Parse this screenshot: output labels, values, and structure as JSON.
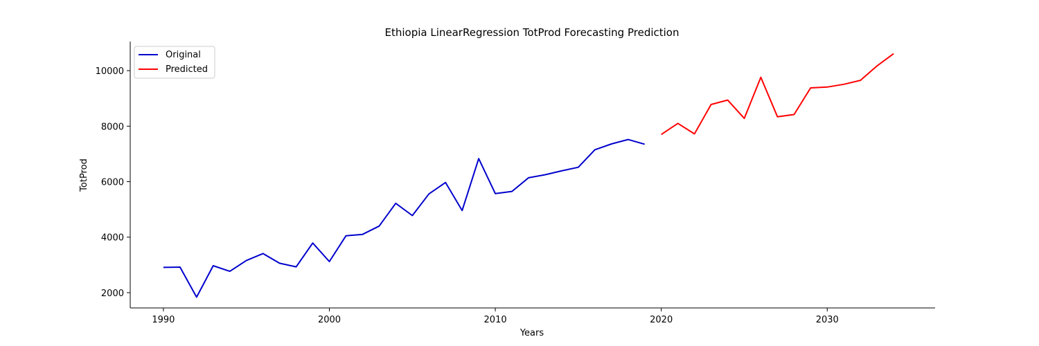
{
  "chart_data": {
    "type": "line",
    "title": "Ethiopia LinearRegression TotProd Forecasting Prediction",
    "xlabel": "Years",
    "ylabel": "TotProd",
    "xlim": [
      1988,
      2036.5
    ],
    "ylim": [
      1450,
      11050
    ],
    "xticks": [
      1990,
      2000,
      2010,
      2020,
      2030
    ],
    "yticks": [
      2000,
      4000,
      6000,
      8000,
      10000
    ],
    "grid": false,
    "legend": "upper-left",
    "series": [
      {
        "name": "Original",
        "color": "#0000cc",
        "x": [
          1990,
          1991,
          1992,
          1993,
          1994,
          1995,
          1996,
          1997,
          1998,
          1999,
          2000,
          2001,
          2002,
          2003,
          2004,
          2005,
          2006,
          2007,
          2008,
          2009,
          2010,
          2011,
          2012,
          2013,
          2014,
          2015,
          2016,
          2017,
          2018,
          2019
        ],
        "y": [
          2910,
          2920,
          1840,
          2970,
          2770,
          3160,
          3410,
          3060,
          2930,
          3790,
          3120,
          4050,
          4100,
          4400,
          5220,
          4780,
          5560,
          5970,
          4960,
          6830,
          5570,
          5650,
          6140,
          6250,
          6390,
          6520,
          7150,
          7360,
          7520,
          7350
        ]
      },
      {
        "name": "Predicted",
        "color": "#ff0000",
        "x": [
          2020,
          2021,
          2022,
          2023,
          2024,
          2025,
          2026,
          2027,
          2028,
          2029,
          2030,
          2031,
          2032,
          2033,
          2034
        ],
        "y": [
          7700,
          8100,
          7720,
          8780,
          8940,
          8280,
          9760,
          8340,
          8420,
          9380,
          9410,
          9510,
          9650,
          10170,
          10610
        ]
      }
    ]
  }
}
